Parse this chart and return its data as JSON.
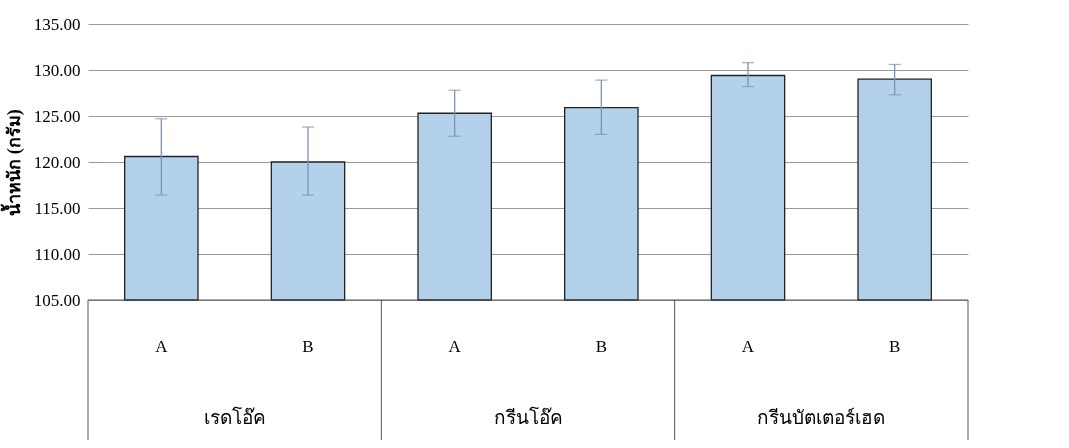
{
  "chart_data": {
    "type": "bar",
    "ylabel": "น้ำหนัก (กรัม)",
    "categories": [
      "A",
      "B",
      "A",
      "B",
      "A",
      "B"
    ],
    "annotations": [
      "เรดโอ๊ค",
      "กรีนโอ๊ค",
      "กรีนบัตเตอร์เฮด"
    ],
    "values": [
      120.6,
      120.0,
      125.3,
      125.9,
      129.4,
      129.0
    ],
    "errors": [
      [
        116.4,
        124.7
      ],
      [
        116.4,
        123.8
      ],
      [
        122.8,
        127.8
      ],
      [
        123.0,
        128.9
      ],
      [
        128.2,
        130.8
      ],
      [
        127.3,
        130.6
      ]
    ],
    "color": "#b3d1ea",
    "ylim": [
      105,
      135
    ],
    "yticks": [
      {
        "value": 105,
        "label": "105.00"
      },
      {
        "value": 110,
        "label": "110.00"
      },
      {
        "value": 115,
        "label": "115.00"
      },
      {
        "value": 120,
        "label": "120.00"
      },
      {
        "value": 125,
        "label": "125.00"
      },
      {
        "value": 130,
        "label": "130.00"
      },
      {
        "value": 135,
        "label": "135.00"
      }
    ],
    "grid": "y"
  }
}
